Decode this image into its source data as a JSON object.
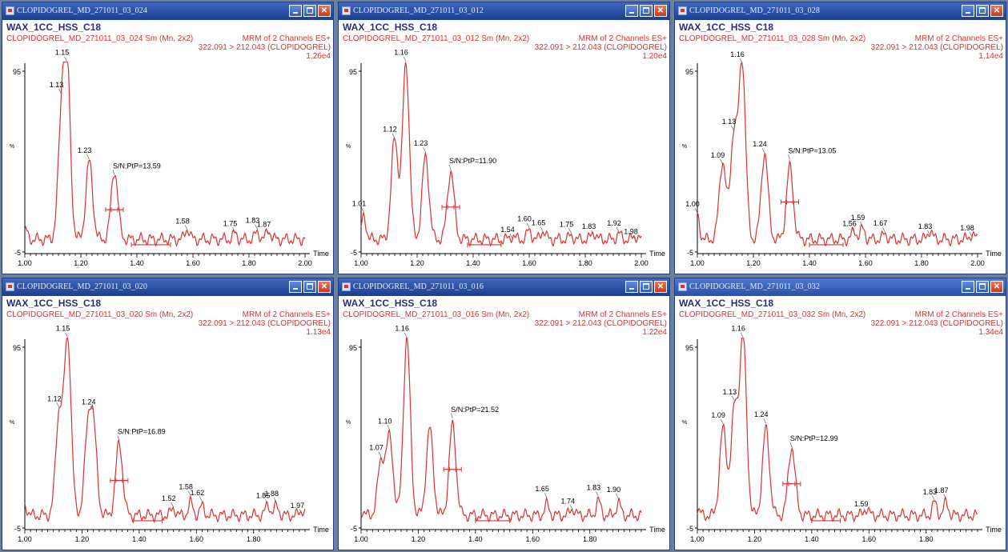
{
  "colors": {
    "trace": "#d93333",
    "axis": "#000000",
    "header_blue": "#2a2f7a",
    "header_red": "#d93333"
  },
  "icons": {
    "window": "chromatogram-window-icon",
    "minimize": "minimize-icon",
    "maximize": "maximize-icon",
    "close": "close-icon"
  },
  "windows": [
    {
      "title": "CLOPIDOGREL_MD_271011_03_024",
      "method": "WAX_1CC_HSS_C18",
      "sample_info": "CLOPIDOGREL_MD_271011_03_024 Sm (Mn, 2x2)",
      "channel": "MRM of 2 Channels ES+",
      "transition": "322.091 > 212.043 (CLOPIDOGREL)",
      "intensity": "1.26e4",
      "sn_label": "S/N:PtP=13.59",
      "chart_data": {
        "type": "line",
        "xlabel": "Time",
        "ylabel": "%",
        "xlim": [
          1.0,
          2.0
        ],
        "ylim": [
          -5,
          100
        ],
        "x_ticks": [
          "1.00",
          "1.20",
          "1.40",
          "1.60",
          "1.80",
          "2.00"
        ],
        "y_ticks": [
          "-5",
          "95"
        ],
        "peaks": [
          {
            "x": 1.0,
            "y": 8
          },
          {
            "x": 1.13,
            "y": 58,
            "label": "1.13"
          },
          {
            "x": 1.15,
            "y": 100,
            "label": "1.15"
          },
          {
            "x": 1.23,
            "y": 45,
            "label": "1.23"
          },
          {
            "x": 1.32,
            "y": 40
          },
          {
            "x": 1.58,
            "y": 8,
            "label": "1.58"
          },
          {
            "x": 1.75,
            "y": 5,
            "label": "1.75"
          },
          {
            "x": 1.83,
            "y": 6,
            "label": "1.83"
          },
          {
            "x": 1.87,
            "y": 7,
            "label": "1.87"
          }
        ],
        "sn_peak_x": 1.32,
        "integration_window": [
          1.38,
          1.52
        ]
      }
    },
    {
      "title": "CLOPIDOGREL_MD_271011_03_012",
      "method": "WAX_1CC_HSS_C18",
      "sample_info": "CLOPIDOGREL_MD_271011_03_012 Sm (Mn, 2x2)",
      "channel": "MRM of 2 Channels ES+",
      "transition": "322.091 > 212.043 (CLOPIDOGREL)",
      "intensity": "1.20e4",
      "sn_label": "S/N:PtP=11.90",
      "chart_data": {
        "type": "line",
        "xlabel": "Time",
        "ylabel": "%",
        "xlim": [
          1.0,
          2.0
        ],
        "ylim": [
          -5,
          100
        ],
        "x_ticks": [
          "1.00",
          "1.20",
          "1.40",
          "1.60",
          "1.80",
          "2.00"
        ],
        "y_ticks": [
          "-5",
          "95"
        ],
        "peaks": [
          {
            "x": 1.01,
            "y": 15,
            "label": "1.01"
          },
          {
            "x": 1.12,
            "y": 58,
            "label": "1.12"
          },
          {
            "x": 1.16,
            "y": 100,
            "label": "1.16"
          },
          {
            "x": 1.23,
            "y": 48,
            "label": "1.23"
          },
          {
            "x": 1.32,
            "y": 40
          },
          {
            "x": 1.54,
            "y": 4,
            "label": "1.54"
          },
          {
            "x": 1.6,
            "y": 7,
            "label": "1.60"
          },
          {
            "x": 1.65,
            "y": 7,
            "label": "1.65"
          },
          {
            "x": 1.75,
            "y": 4,
            "label": "1.75"
          },
          {
            "x": 1.83,
            "y": 6,
            "label": "1.83"
          },
          {
            "x": 1.92,
            "y": 5,
            "label": "1.92"
          },
          {
            "x": 1.98,
            "y": 4,
            "label": "1.98"
          }
        ],
        "sn_peak_x": 1.32,
        "integration_window": [
          1.38,
          1.5
        ]
      }
    },
    {
      "title": "CLOPIDOGREL_MD_271011_03_028",
      "method": "WAX_1CC_HSS_C18",
      "sample_info": "CLOPIDOGREL_MD_271011_03_028 Sm (Mn, 2x2)",
      "channel": "MRM of 2 Channels ES+",
      "transition": "322.091 > 212.043 (CLOPIDOGREL)",
      "intensity": "1.14e4",
      "sn_label": "S/N:PtP=13.05",
      "chart_data": {
        "type": "line",
        "xlabel": "Time",
        "ylabel": "%",
        "xlim": [
          1.0,
          2.0
        ],
        "ylim": [
          -5,
          100
        ],
        "x_ticks": [
          "1.00",
          "1.20",
          "1.40",
          "1.60",
          "1.80",
          "2.00"
        ],
        "y_ticks": [
          "-5",
          "95"
        ],
        "peaks": [
          {
            "x": 1.0,
            "y": 15,
            "label": "1.00"
          },
          {
            "x": 1.09,
            "y": 45,
            "label": "1.09"
          },
          {
            "x": 1.13,
            "y": 60,
            "label": "1.13"
          },
          {
            "x": 1.16,
            "y": 100,
            "label": "1.16"
          },
          {
            "x": 1.24,
            "y": 50,
            "label": "1.24"
          },
          {
            "x": 1.33,
            "y": 42
          },
          {
            "x": 1.56,
            "y": 7,
            "label": "1.56"
          },
          {
            "x": 1.59,
            "y": 8,
            "label": "1.59"
          },
          {
            "x": 1.67,
            "y": 5,
            "label": "1.67"
          },
          {
            "x": 1.83,
            "y": 7,
            "label": "1.83"
          },
          {
            "x": 1.98,
            "y": 5,
            "label": "1.98"
          }
        ],
        "sn_peak_x": 1.33,
        "integration_window": [
          1.4,
          1.52
        ]
      }
    },
    {
      "title": "CLOPIDOGREL_MD_271011_03_020",
      "method": "WAX_1CC_HSS_C18",
      "sample_info": "CLOPIDOGREL_MD_271011_03_020 Sm (Mn, 2x2)",
      "channel": "MRM of 2 Channels ES+",
      "transition": "322.091 > 212.043 (CLOPIDOGREL)",
      "intensity": "1.13e4",
      "sn_label": "S/N:PtP=16.89",
      "chart_data": {
        "type": "line",
        "xlabel": "Time",
        "ylabel": "%",
        "xlim": [
          1.0,
          1.98
        ],
        "ylim": [
          -5,
          100
        ],
        "x_ticks": [
          "1.00",
          "1.20",
          "1.40",
          "1.60",
          "1.80"
        ],
        "y_ticks": [
          "-5",
          "95"
        ],
        "peaks": [
          {
            "x": 1.0,
            "y": 8
          },
          {
            "x": 1.12,
            "y": 58,
            "label": "1.12"
          },
          {
            "x": 1.15,
            "y": 100,
            "label": "1.15"
          },
          {
            "x": 1.22,
            "y": 44
          },
          {
            "x": 1.24,
            "y": 48,
            "label": "1.24"
          },
          {
            "x": 1.33,
            "y": 42
          },
          {
            "x": 1.52,
            "y": 6,
            "label": "1.52"
          },
          {
            "x": 1.58,
            "y": 9,
            "label": "1.58"
          },
          {
            "x": 1.62,
            "y": 7,
            "label": "1.62"
          },
          {
            "x": 1.85,
            "y": 8,
            "label": "1.85"
          },
          {
            "x": 1.88,
            "y": 7,
            "label": "1.88"
          },
          {
            "x": 1.97,
            "y": 5,
            "label": "1.97"
          }
        ],
        "sn_peak_x": 1.33,
        "integration_window": [
          1.38,
          1.48
        ]
      }
    },
    {
      "title": "CLOPIDOGREL_MD_271011_03_016",
      "method": "WAX_1CC_HSS_C18",
      "sample_info": "CLOPIDOGREL_MD_271011_03_016 Sm (Mn, 2x2)",
      "channel": "MRM of 2 Channels ES+",
      "transition": "322.091 > 212.043 (CLOPIDOGREL)",
      "intensity": "1.22e4",
      "sn_label": "S/N:PtP=21.52",
      "chart_data": {
        "type": "line",
        "xlabel": "Time",
        "ylabel": "%",
        "xlim": [
          1.0,
          1.98
        ],
        "ylim": [
          -5,
          100
        ],
        "x_ticks": [
          "1.00",
          "1.20",
          "1.40",
          "1.60",
          "1.80"
        ],
        "y_ticks": [
          "-5",
          "95"
        ],
        "peaks": [
          {
            "x": 1.0,
            "y": 5
          },
          {
            "x": 1.07,
            "y": 32,
            "label": "1.07"
          },
          {
            "x": 1.1,
            "y": 45,
            "label": "1.10"
          },
          {
            "x": 1.16,
            "y": 100,
            "label": "1.16"
          },
          {
            "x": 1.24,
            "y": 50
          },
          {
            "x": 1.32,
            "y": 52
          },
          {
            "x": 1.65,
            "y": 8,
            "label": "1.65"
          },
          {
            "x": 1.74,
            "y": 6,
            "label": "1.74"
          },
          {
            "x": 1.83,
            "y": 10,
            "label": "1.83"
          },
          {
            "x": 1.9,
            "y": 9,
            "label": "1.90"
          }
        ],
        "sn_peak_x": 1.32,
        "integration_window": [
          1.4,
          1.52
        ]
      }
    },
    {
      "title": "CLOPIDOGREL_MD_271011_03_032",
      "method": "WAX_1CC_HSS_C18",
      "sample_info": "CLOPIDOGREL_MD_271011_03_032 Sm (Mn, 2x2)",
      "channel": "MRM of 2 Channels ES+",
      "transition": "322.091 > 212.043 (CLOPIDOGREL)",
      "intensity": "1.34e4",
      "sn_label": "S/N:PtP=12.99",
      "chart_data": {
        "type": "line",
        "xlabel": "Time",
        "ylabel": "%",
        "xlim": [
          1.0,
          1.98
        ],
        "ylim": [
          -5,
          100
        ],
        "x_ticks": [
          "1.00",
          "1.20",
          "1.40",
          "1.60",
          "1.80"
        ],
        "y_ticks": [
          "-5",
          "95"
        ],
        "peaks": [
          {
            "x": 1.0,
            "y": 5
          },
          {
            "x": 1.09,
            "y": 50,
            "label": "1.09"
          },
          {
            "x": 1.13,
            "y": 60,
            "label": "1.13"
          },
          {
            "x": 1.16,
            "y": 100,
            "label": "1.16"
          },
          {
            "x": 1.24,
            "y": 50,
            "label": "1.24"
          },
          {
            "x": 1.33,
            "y": 40
          },
          {
            "x": 1.59,
            "y": 6,
            "label": "1.59"
          },
          {
            "x": 1.83,
            "y": 9,
            "label": "1.83"
          },
          {
            "x": 1.87,
            "y": 9,
            "label": "1.87"
          }
        ],
        "sn_peak_x": 1.33,
        "integration_window": [
          1.4,
          1.5
        ]
      }
    }
  ]
}
